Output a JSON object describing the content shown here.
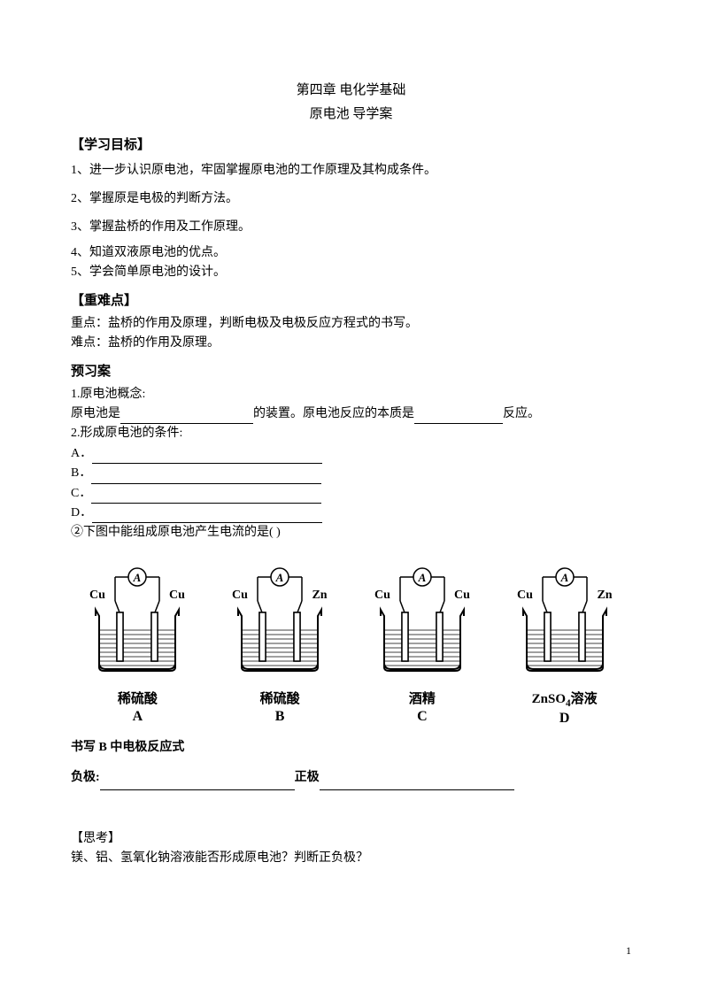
{
  "header": {
    "chapter": "第四章 电化学基础",
    "subtitle": "原电池    导学案"
  },
  "objectives": {
    "head": "【学习目标】",
    "items": [
      "1、进一步认识原电池，牢固掌握原电池的工作原理及其构成条件。",
      "2、掌握原是电极的判断方法。",
      "3、掌握盐桥的作用及工作原理。",
      "4、知道双液原电池的优点。",
      "5、学会简单原电池的设计。"
    ]
  },
  "keypoints": {
    "head": "【重难点】",
    "focus": "重点：盐桥的作用及原理，判断电极及电极反应方程式的书写。",
    "difficult": "难点：盐桥的作用及原理。"
  },
  "preview": {
    "head": "预习案",
    "q1_label": "1.原电池概念:",
    "q1_prefix": "原电池是",
    "q1_mid": "的装置。原电池反应的本质是",
    "q1_suffix": "反应。",
    "q2_label": "2.形成原电池的条件:",
    "options": [
      "A．",
      "B．",
      "C．",
      "D．"
    ],
    "q2_question": "②下图中能组成原电池产生电流的是(        )"
  },
  "diagrams": [
    {
      "left": "Cu",
      "right": "Cu",
      "solution": "稀硫酸",
      "letter": "A"
    },
    {
      "left": "Cu",
      "right": "Zn",
      "solution": "稀硫酸",
      "letter": "B"
    },
    {
      "left": "Cu",
      "right": "Cu",
      "solution": "酒精",
      "letter": "C"
    },
    {
      "left": "Cu",
      "right": "Zn",
      "solution": "ZnSO",
      "solution_sub": "4",
      "solution_suffix": "溶液",
      "letter": "D"
    }
  ],
  "electrode": {
    "head": "书写 B 中电极反应式",
    "neg": "负极:",
    "pos": "正极"
  },
  "think": {
    "head": "【思考】",
    "q": "镁、铝、氢氧化钠溶液能否形成原电池？判断正负极？"
  },
  "svg": {
    "ammeter_label": "A",
    "stroke": "#000000",
    "beaker_fill": "none"
  },
  "blank_widths": {
    "q1_first": "150px",
    "q1_second": "100px",
    "option": "260px",
    "electrode": "220px"
  },
  "page_number": "1"
}
